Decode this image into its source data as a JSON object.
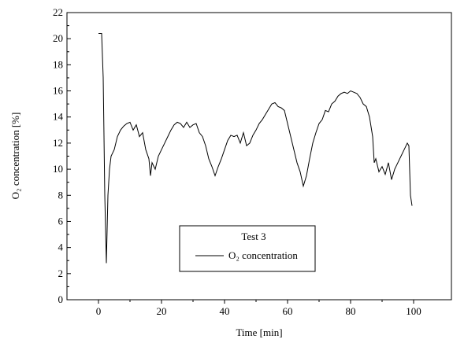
{
  "chart_data": {
    "type": "line",
    "x_label": "Time [min]",
    "y_label": "O₂ concentration [%]",
    "legend_title": "Test 3",
    "x": [
      0,
      1,
      1.5,
      2,
      2.5,
      3,
      3.5,
      4,
      5,
      6,
      7,
      8,
      9,
      10,
      11,
      12,
      13,
      14,
      15,
      16,
      16.5,
      17,
      18,
      19,
      20,
      21,
      22,
      23,
      24,
      25,
      26,
      27,
      28,
      29,
      30,
      31,
      32,
      33,
      34,
      35,
      36,
      37,
      38,
      39,
      40,
      41,
      42,
      43,
      44,
      45,
      46,
      47,
      48,
      49,
      50,
      51,
      52,
      53,
      54,
      55,
      56,
      57,
      58,
      59,
      60,
      61,
      62,
      63,
      64,
      65,
      66,
      67,
      68,
      69,
      70,
      71,
      72,
      73,
      74,
      75,
      76,
      77,
      78,
      79,
      80,
      81,
      82,
      83,
      84,
      85,
      86,
      87,
      87.5,
      88,
      89,
      90,
      91,
      92,
      93,
      94,
      95,
      96,
      97,
      98,
      98.5,
      99,
      99.5
    ],
    "series": [
      {
        "name": "O₂ concentration",
        "color": "#000000",
        "values": [
          20.4,
          20.4,
          17,
          8,
          2.8,
          8,
          10,
          11,
          11.5,
          12.5,
          13,
          13.3,
          13.5,
          13.6,
          13,
          13.4,
          12.5,
          12.8,
          11.5,
          10.8,
          9.5,
          10.5,
          10,
          11,
          11.5,
          12,
          12.5,
          13,
          13.4,
          13.6,
          13.5,
          13.2,
          13.6,
          13.2,
          13.4,
          13.5,
          12.8,
          12.5,
          11.8,
          10.8,
          10.2,
          9.5,
          10.2,
          10.8,
          11.5,
          12.2,
          12.6,
          12.5,
          12.6,
          12,
          12.8,
          11.8,
          12,
          12.6,
          13,
          13.5,
          13.8,
          14.2,
          14.6,
          15,
          15.1,
          14.8,
          14.7,
          14.5,
          13.5,
          12.5,
          11.5,
          10.5,
          9.8,
          8.7,
          9.5,
          10.8,
          12,
          12.8,
          13.5,
          13.8,
          14.5,
          14.4,
          15,
          15.2,
          15.6,
          15.8,
          15.9,
          15.8,
          16,
          15.9,
          15.8,
          15.5,
          15,
          14.8,
          14,
          12.5,
          10.5,
          10.8,
          9.8,
          10.2,
          9.6,
          10.5,
          9.2,
          10,
          10.5,
          11,
          11.5,
          12,
          11.8,
          8,
          7.2
        ]
      }
    ],
    "xlim": [
      -10,
      112
    ],
    "ylim": [
      0,
      22
    ],
    "xticks": [
      0,
      20,
      40,
      60,
      80,
      100
    ],
    "yticks": [
      0,
      2,
      4,
      6,
      8,
      10,
      12,
      14,
      16,
      18,
      20,
      22
    ],
    "grid": false
  }
}
